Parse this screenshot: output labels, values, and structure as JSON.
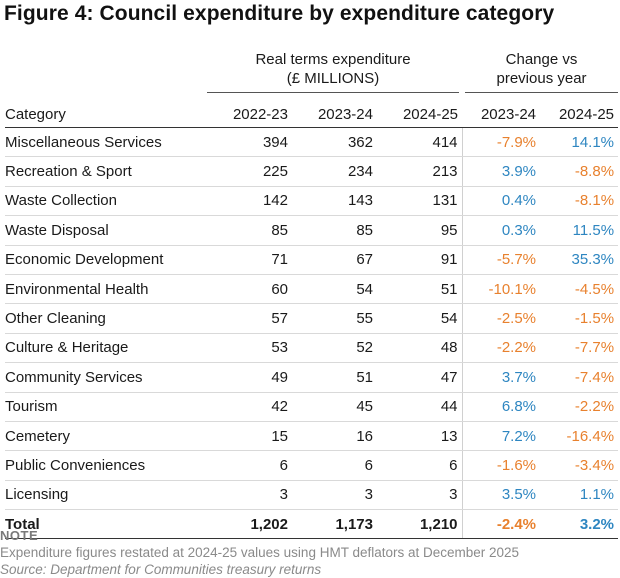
{
  "title": "Figure 4: Council expenditure by expenditure category",
  "header": {
    "group_expenditure_line1": "Real terms expenditure",
    "group_expenditure_line2": "(£ MILLIONS)",
    "group_change_line1": "Change vs",
    "group_change_line2": "previous year",
    "col_category": "Category",
    "col_y1": "2022-23",
    "col_y2": "2023-24",
    "col_y3": "2024-25",
    "col_c1": "2023-24",
    "col_c2": "2024-25"
  },
  "rows": [
    {
      "category": "Miscellaneous Services",
      "y1": "394",
      "y2": "362",
      "y3": "414",
      "c1": "-7.9%",
      "c2": "14.1%"
    },
    {
      "category": "Recreation & Sport",
      "y1": "225",
      "y2": "234",
      "y3": "213",
      "c1": "3.9%",
      "c2": "-8.8%"
    },
    {
      "category": "Waste Collection",
      "y1": "142",
      "y2": "143",
      "y3": "131",
      "c1": "0.4%",
      "c2": "-8.1%"
    },
    {
      "category": "Waste Disposal",
      "y1": "85",
      "y2": "85",
      "y3": "95",
      "c1": "0.3%",
      "c2": "11.5%"
    },
    {
      "category": "Economic Development",
      "y1": "71",
      "y2": "67",
      "y3": "91",
      "c1": "-5.7%",
      "c2": "35.3%"
    },
    {
      "category": "Environmental Health",
      "y1": "60",
      "y2": "54",
      "y3": "51",
      "c1": "-10.1%",
      "c2": "-4.5%"
    },
    {
      "category": "Other Cleaning",
      "y1": "57",
      "y2": "55",
      "y3": "54",
      "c1": "-2.5%",
      "c2": "-1.5%"
    },
    {
      "category": "Culture & Heritage",
      "y1": "53",
      "y2": "52",
      "y3": "48",
      "c1": "-2.2%",
      "c2": "-7.7%"
    },
    {
      "category": "Community Services",
      "y1": "49",
      "y2": "51",
      "y3": "47",
      "c1": "3.7%",
      "c2": "-7.4%"
    },
    {
      "category": "Tourism",
      "y1": "42",
      "y2": "45",
      "y3": "44",
      "c1": "6.8%",
      "c2": "-2.2%"
    },
    {
      "category": "Cemetery",
      "y1": "15",
      "y2": "16",
      "y3": "13",
      "c1": "7.2%",
      "c2": "-16.4%"
    },
    {
      "category": "Public Conveniences",
      "y1": "6",
      "y2": "6",
      "y3": "6",
      "c1": "-1.6%",
      "c2": "-3.4%"
    },
    {
      "category": "Licensing",
      "y1": "3",
      "y2": "3",
      "y3": "3",
      "c1": "3.5%",
      "c2": "1.1%"
    }
  ],
  "total": {
    "category": "Total",
    "y1": "1,202",
    "y2": "1,173",
    "y3": "1,210",
    "c1": "-2.4%",
    "c2": "3.2%"
  },
  "note": {
    "heading": "NOTE",
    "text": "Expenditure figures restated at 2024-25 values using HMT deflators at December 2025",
    "source": "Source: Department for Communities treasury returns"
  },
  "colors": {
    "negative": "#e8812e",
    "positive": "#2e86c1"
  }
}
